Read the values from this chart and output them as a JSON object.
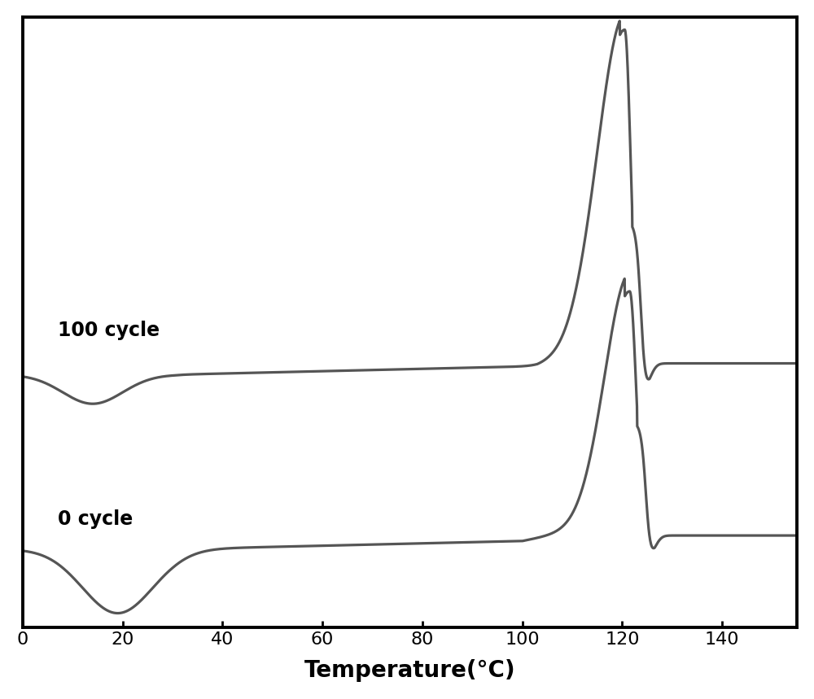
{
  "line_color": "#555555",
  "background_color": "#ffffff",
  "xlabel": "Temperature(°C)",
  "xlabel_fontsize": 20,
  "xlabel_fontweight": "bold",
  "tick_fontsize": 16,
  "xlim": [
    0,
    155
  ],
  "label_100cycle": "100 cycle",
  "label_0cycle": "0 cycle",
  "label_fontsize": 17,
  "label_fontweight": "bold",
  "line_width": 2.3,
  "curve0_baseline": 0.12,
  "curve100_baseline": 0.72,
  "ylim_low": -0.15,
  "ylim_high": 1.95
}
